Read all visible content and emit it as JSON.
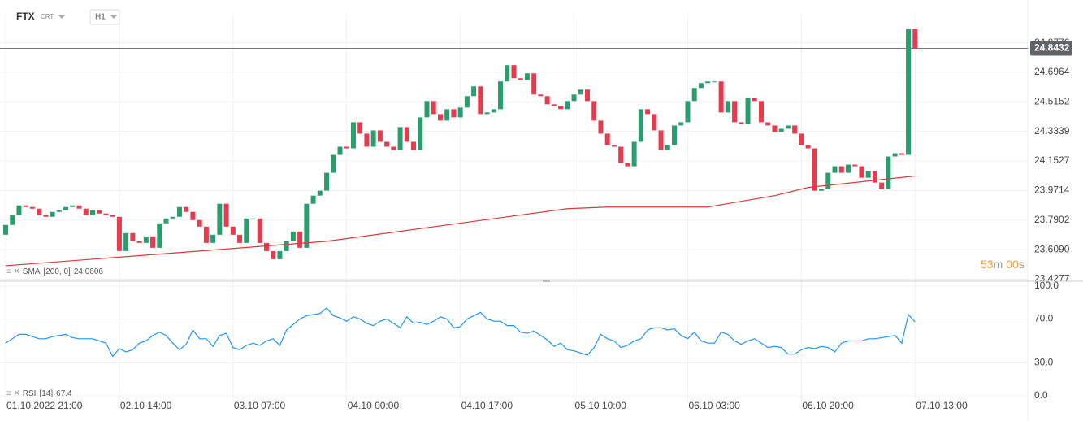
{
  "header": {
    "symbol": "FTX",
    "subtitle": "CRT",
    "timeframe": "H1"
  },
  "countdown": [
    "53",
    "m",
    "00",
    "s"
  ],
  "chart_data": [
    {
      "type": "candlestick",
      "categories": [
        "01.10.2022 21:00",
        null,
        null,
        null,
        null,
        null,
        null,
        null,
        null,
        null,
        null,
        null,
        null,
        null,
        null,
        null,
        null,
        "02.10 14:00",
        null,
        null,
        null,
        null,
        null,
        null,
        null,
        null,
        null,
        null,
        null,
        null,
        null,
        null,
        null,
        null,
        "03.10 07:00",
        null,
        null,
        null,
        null,
        null,
        null,
        null,
        null,
        null,
        null,
        null,
        null,
        null,
        null,
        null,
        null,
        "04.10 00:00",
        null,
        null,
        null,
        null,
        null,
        null,
        null,
        null,
        null,
        null,
        null,
        null,
        null,
        null,
        null,
        null,
        "04.10 17:00",
        null,
        null,
        null,
        null,
        null,
        null,
        null,
        null,
        null,
        null,
        null,
        null,
        null,
        null,
        null,
        null,
        "05.10 10:00",
        null,
        null,
        null,
        null,
        null,
        null,
        null,
        null,
        null,
        null,
        null,
        null,
        null,
        null,
        null,
        null,
        "06.10 03:00",
        null,
        null,
        null,
        null,
        null,
        null,
        null,
        null,
        null,
        null,
        null,
        null,
        null,
        null,
        null,
        null,
        "06.10 20:00",
        null,
        null,
        null,
        null,
        null,
        null,
        null,
        null,
        null,
        null,
        null,
        null,
        null,
        null,
        null,
        null,
        "07.10 13:00"
      ],
      "open": [
        23.7,
        23.76,
        23.82,
        23.88,
        23.87,
        23.86,
        23.82,
        23.81,
        23.84,
        23.85,
        23.87,
        23.88,
        23.86,
        23.82,
        23.85,
        23.83,
        23.82,
        23.81,
        23.6,
        23.71,
        23.66,
        23.65,
        23.69,
        23.62,
        23.77,
        23.8,
        23.81,
        23.87,
        23.84,
        23.79,
        23.75,
        23.65,
        23.7,
        23.89,
        23.75,
        23.7,
        23.65,
        23.8,
        23.8,
        23.65,
        23.6,
        23.55,
        23.6,
        23.66,
        23.72,
        23.62,
        23.89,
        23.94,
        23.97,
        24.08,
        24.19,
        24.24,
        24.23,
        24.39,
        24.32,
        24.24,
        24.34,
        24.27,
        24.24,
        24.22,
        24.36,
        24.27,
        24.22,
        24.42,
        24.52,
        24.44,
        24.4,
        24.47,
        24.42,
        24.48,
        24.55,
        24.61,
        24.44,
        24.45,
        24.47,
        24.64,
        24.74,
        24.66,
        24.65,
        24.69,
        24.56,
        24.55,
        24.5,
        24.49,
        24.47,
        24.52,
        24.56,
        24.59,
        24.52,
        24.4,
        24.32,
        24.25,
        24.24,
        24.14,
        24.12,
        24.27,
        24.47,
        24.44,
        24.34,
        24.22,
        24.25,
        24.37,
        24.39,
        24.52,
        24.6,
        24.63,
        24.64,
        24.64,
        24.45,
        24.52,
        24.39,
        24.38,
        24.54,
        24.52,
        24.39,
        24.37,
        24.33,
        24.35,
        24.37,
        24.32,
        24.25,
        24.23,
        23.97,
        23.98,
        24.08,
        24.12,
        24.08,
        24.13,
        24.12,
        24.05,
        24.09,
        24.02,
        23.98,
        24.18,
        24.2,
        24.19,
        24.96
      ],
      "close": [
        23.76,
        23.82,
        23.88,
        23.87,
        23.86,
        23.82,
        23.81,
        23.84,
        23.85,
        23.87,
        23.88,
        23.86,
        23.82,
        23.85,
        23.83,
        23.82,
        23.81,
        23.6,
        23.71,
        23.66,
        23.65,
        23.69,
        23.62,
        23.77,
        23.8,
        23.81,
        23.87,
        23.84,
        23.79,
        23.75,
        23.65,
        23.7,
        23.89,
        23.75,
        23.7,
        23.65,
        23.8,
        23.8,
        23.65,
        23.6,
        23.55,
        23.6,
        23.66,
        23.72,
        23.62,
        23.89,
        23.94,
        23.97,
        24.08,
        24.19,
        24.24,
        24.23,
        24.39,
        24.32,
        24.24,
        24.34,
        24.27,
        24.24,
        24.22,
        24.36,
        24.27,
        24.22,
        24.42,
        24.52,
        24.44,
        24.4,
        24.47,
        24.42,
        24.48,
        24.55,
        24.61,
        24.44,
        24.45,
        24.47,
        24.64,
        24.74,
        24.66,
        24.65,
        24.69,
        24.56,
        24.55,
        24.5,
        24.49,
        24.47,
        24.52,
        24.56,
        24.59,
        24.52,
        24.4,
        24.32,
        24.25,
        24.24,
        24.14,
        24.12,
        24.27,
        24.47,
        24.44,
        24.34,
        24.22,
        24.25,
        24.37,
        24.39,
        24.52,
        24.6,
        24.63,
        24.64,
        24.64,
        24.45,
        24.52,
        24.39,
        24.38,
        24.54,
        24.52,
        24.39,
        24.37,
        24.33,
        24.35,
        24.37,
        24.32,
        24.25,
        24.23,
        23.97,
        23.98,
        24.08,
        24.12,
        24.08,
        24.13,
        24.12,
        24.05,
        24.09,
        24.02,
        23.98,
        24.18,
        24.2,
        24.19,
        24.96,
        24.8432
      ],
      "up_color": "#2a9d6f",
      "down_color": "#e63a4e",
      "ylim": [
        23.42,
        25.05
      ],
      "yticks": [
        24.8776,
        24.6964,
        24.5152,
        24.3339,
        24.1527,
        23.9714,
        23.7902,
        {
          "value": 23.609,
          "label": "23.6090"
        },
        23.4277
      ],
      "grid": true,
      "sma": {
        "name": "SMA",
        "params": "[200,  0]",
        "color": "#d93a3a",
        "x": [
          0,
          29,
          48,
          66,
          84,
          90,
          105,
          115,
          120,
          136
        ],
        "values": [
          23.51,
          23.6,
          23.66,
          23.76,
          23.86,
          23.87,
          23.87,
          23.94,
          23.99,
          24.0606
        ]
      }
    },
    {
      "type": "line",
      "name": "RSI",
      "params": "[14]",
      "color": "#2196f3",
      "values": [
        48,
        52,
        56,
        56,
        54,
        52,
        52,
        54,
        55,
        56,
        53,
        52,
        52,
        52,
        50,
        48,
        36,
        43,
        40,
        42,
        48,
        50,
        55,
        58,
        55,
        48,
        42,
        47,
        60,
        52,
        52,
        45,
        55,
        57,
        44,
        42,
        46,
        48,
        46,
        50,
        52,
        46,
        60,
        65,
        70,
        73,
        74,
        75,
        80,
        73,
        71,
        68,
        72,
        70,
        66,
        64,
        68,
        70,
        66,
        62,
        72,
        66,
        67,
        65,
        68,
        72,
        70,
        62,
        63,
        70,
        73,
        76,
        70,
        68,
        68,
        64,
        64,
        58,
        57,
        59,
        55,
        51,
        45,
        48,
        42,
        41,
        39,
        37,
        44,
        56,
        52,
        50,
        44,
        46,
        50,
        52,
        60,
        62,
        62,
        60,
        61,
        55,
        52,
        58,
        50,
        48,
        48,
        58,
        56,
        50,
        47,
        50,
        52,
        48,
        44,
        45,
        44,
        38,
        38,
        42,
        44,
        43,
        45,
        44,
        40,
        48,
        50,
        50,
        50,
        52,
        52,
        53,
        54,
        55,
        48,
        74,
        67.4
      ],
      "ylim": [
        0,
        100
      ],
      "yticks": [
        {
          "value": 100,
          "label": "100.0"
        },
        {
          "value": 70,
          "label": "70.0"
        },
        {
          "value": 30,
          "label": "30.0"
        },
        {
          "value": 0,
          "label": "0.0"
        }
      ]
    }
  ]
}
